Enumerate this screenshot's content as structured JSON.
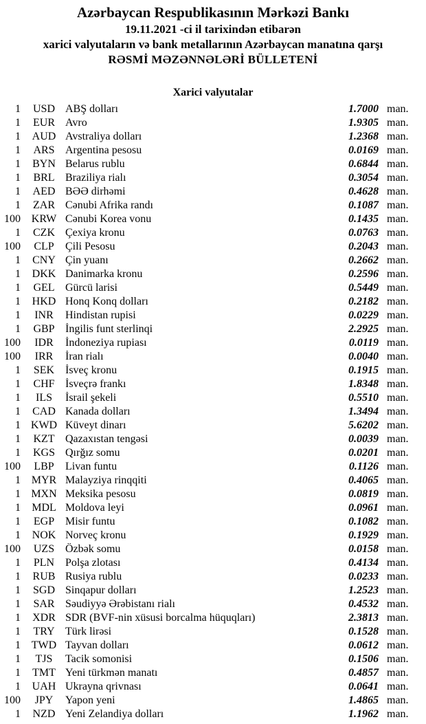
{
  "header": {
    "title": "Azərbaycan Respublikasının Mərkəzi Bankı",
    "date_line": "19.11.2021 -ci il tarixindən etibarən",
    "subtitle": "xarici valyutaların və bank metallarının Azərbaycan manatına qarşı",
    "bulletin_title": "RƏSMİ MƏZƏNNƏLƏRİ BÜLLETENİ"
  },
  "section": {
    "title": "Xarici valyutalar"
  },
  "unit_label": "man.",
  "colors": {
    "text": "#050505",
    "background": "#ffffff"
  },
  "rates": [
    {
      "qty": "1",
      "code": "USD",
      "name": "ABŞ dolları",
      "rate": "1.7000"
    },
    {
      "qty": "1",
      "code": "EUR",
      "name": "Avro",
      "rate": "1.9305"
    },
    {
      "qty": "1",
      "code": "AUD",
      "name": "Avstraliya dolları",
      "rate": "1.2368"
    },
    {
      "qty": "1",
      "code": "ARS",
      "name": "Argentina pesosu",
      "rate": "0.0169"
    },
    {
      "qty": "1",
      "code": "BYN",
      "name": "Belarus rublu",
      "rate": "0.6844"
    },
    {
      "qty": "1",
      "code": "BRL",
      "name": "Braziliya rialı",
      "rate": "0.3054"
    },
    {
      "qty": "1",
      "code": "AED",
      "name": "BƏƏ dirhəmi",
      "rate": "0.4628"
    },
    {
      "qty": "1",
      "code": "ZAR",
      "name": "Cənubi Afrika randı",
      "rate": "0.1087"
    },
    {
      "qty": "100",
      "code": "KRW",
      "name": "Cənubi Korea vonu",
      "rate": "0.1435"
    },
    {
      "qty": "1",
      "code": "CZK",
      "name": "Çexiya kronu",
      "rate": "0.0763"
    },
    {
      "qty": "100",
      "code": "CLP",
      "name": "Çili Pesosu",
      "rate": "0.2043"
    },
    {
      "qty": "1",
      "code": "CNY",
      "name": "Çin yuanı",
      "rate": "0.2662"
    },
    {
      "qty": "1",
      "code": "DKK",
      "name": "Danimarka kronu",
      "rate": "0.2596"
    },
    {
      "qty": "1",
      "code": "GEL",
      "name": "Gürcü larisi",
      "rate": "0.5449"
    },
    {
      "qty": "1",
      "code": "HKD",
      "name": "Honq Konq dolları",
      "rate": "0.2182"
    },
    {
      "qty": "1",
      "code": "INR",
      "name": "Hindistan rupisi",
      "rate": "0.0229"
    },
    {
      "qty": "1",
      "code": "GBP",
      "name": "İngilis funt sterlinqi",
      "rate": "2.2925"
    },
    {
      "qty": "100",
      "code": "IDR",
      "name": "İndoneziya rupiası",
      "rate": "0.0119"
    },
    {
      "qty": "100",
      "code": "IRR",
      "name": "İran rialı",
      "rate": "0.0040"
    },
    {
      "qty": "1",
      "code": "SEK",
      "name": "İsveç kronu",
      "rate": "0.1915"
    },
    {
      "qty": "1",
      "code": "CHF",
      "name": "İsveçrə frankı",
      "rate": "1.8348"
    },
    {
      "qty": "1",
      "code": "ILS",
      "name": "İsrail şekeli",
      "rate": "0.5510"
    },
    {
      "qty": "1",
      "code": "CAD",
      "name": "Kanada dolları",
      "rate": "1.3494"
    },
    {
      "qty": "1",
      "code": "KWD",
      "name": "Küveyt dinarı",
      "rate": "5.6202"
    },
    {
      "qty": "1",
      "code": "KZT",
      "name": "Qazaxıstan tengəsi",
      "rate": "0.0039"
    },
    {
      "qty": "1",
      "code": "KGS",
      "name": "Qırğız somu",
      "rate": "0.0201"
    },
    {
      "qty": "100",
      "code": "LBP",
      "name": "Livan funtu",
      "rate": "0.1126"
    },
    {
      "qty": "1",
      "code": "MYR",
      "name": "Malayziya rinqqiti",
      "rate": "0.4065"
    },
    {
      "qty": "1",
      "code": "MXN",
      "name": "Meksika pesosu",
      "rate": "0.0819"
    },
    {
      "qty": "1",
      "code": "MDL",
      "name": "Moldova leyi",
      "rate": "0.0961"
    },
    {
      "qty": "1",
      "code": "EGP",
      "name": "Misir funtu",
      "rate": "0.1082"
    },
    {
      "qty": "1",
      "code": "NOK",
      "name": "Norveç kronu",
      "rate": "0.1929"
    },
    {
      "qty": "100",
      "code": "UZS",
      "name": "Özbək somu",
      "rate": "0.0158"
    },
    {
      "qty": "1",
      "code": "PLN",
      "name": "Polşa zlotası",
      "rate": "0.4134"
    },
    {
      "qty": "1",
      "code": "RUB",
      "name": "Rusiya rublu",
      "rate": "0.0233"
    },
    {
      "qty": "1",
      "code": "SGD",
      "name": "Sinqapur dolları",
      "rate": "1.2523"
    },
    {
      "qty": "1",
      "code": "SAR",
      "name": "Səudiyyə Ərəbistanı rialı",
      "rate": "0.4532"
    },
    {
      "qty": "1",
      "code": "XDR",
      "name": "SDR (BVF-nin xüsusi borcalma hüquqları)",
      "rate": "2.3813"
    },
    {
      "qty": "1",
      "code": "TRY",
      "name": "Türk lirəsi",
      "rate": "0.1528"
    },
    {
      "qty": "1",
      "code": "TWD",
      "name": "Tayvan dolları",
      "rate": "0.0612"
    },
    {
      "qty": "1",
      "code": "TJS",
      "name": "Tacik somonisi",
      "rate": "0.1506"
    },
    {
      "qty": "1",
      "code": "TMT",
      "name": "Yeni türkmən manatı",
      "rate": "0.4857"
    },
    {
      "qty": "1",
      "code": "UAH",
      "name": "Ukrayna qrivnası",
      "rate": "0.0641"
    },
    {
      "qty": "100",
      "code": "JPY",
      "name": "Yapon yeni",
      "rate": "1.4865"
    },
    {
      "qty": "1",
      "code": "NZD",
      "name": "Yeni Zelandiya dolları",
      "rate": "1.1962"
    }
  ]
}
